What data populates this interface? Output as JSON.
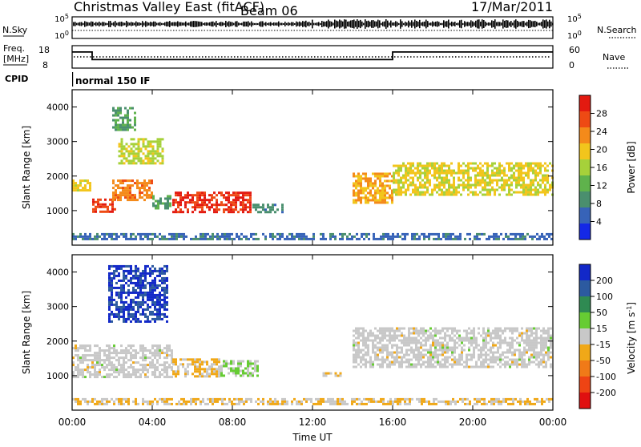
{
  "header": {
    "title": "Christmas Valley East (fitACF)",
    "beam": "Beam 06",
    "date": "17/Mar/2011"
  },
  "strips": {
    "nsky": {
      "left_label": "N.Sky",
      "right_label": "N.Search",
      "left_ticks": [
        "10^5",
        "10^0"
      ],
      "right_ticks": [
        "10^5",
        "10^0"
      ]
    },
    "freq": {
      "left_label_1": "Freq.",
      "left_label_2": "[MHz]",
      "right_label": "Nave",
      "left_ticks": [
        "18",
        "8"
      ],
      "right_ticks": [
        "60",
        "0"
      ],
      "freq_steps": [
        {
          "t0": 0.0,
          "t1": 1.0,
          "value": 15.2
        },
        {
          "t0": 1.0,
          "t1": 16.0,
          "value": 11.8
        },
        {
          "t0": 16.0,
          "t1": 24.0,
          "value": 15.2
        }
      ]
    },
    "cpid": {
      "label": "CPID",
      "value": "normal 150 IF"
    }
  },
  "colors": {
    "power": [
      "#1428e6",
      "#3763b8",
      "#4a8f6e",
      "#5fb24c",
      "#a6d13a",
      "#f2c51c",
      "#f48a1a",
      "#ee4a14",
      "#e31a10"
    ],
    "velocity": [
      "#1228c8",
      "#2c5aa0",
      "#2f8a52",
      "#66cc33",
      "#c8c8c8",
      "#f0a818",
      "#f07a18",
      "#ee4414",
      "#e01010"
    ]
  },
  "chart_data": [
    {
      "type": "heatmap",
      "name": "power",
      "xlabel": "Time UT",
      "ylabel": "Slant Range [km]",
      "xlim": [
        0,
        24
      ],
      "ylim": [
        0,
        4500
      ],
      "x_ticks": [
        "00:00",
        "04:00",
        "08:00",
        "12:00",
        "16:00",
        "20:00",
        "00:00"
      ],
      "y_ticks": [
        "1000",
        "2000",
        "3000",
        "4000"
      ],
      "colorbar": {
        "label": "Power [dB]",
        "ticks": [
          "4",
          "8",
          "12",
          "16",
          "20",
          "24",
          "28"
        ],
        "range": [
          0,
          30
        ]
      },
      "regions": [
        {
          "t0": 0.0,
          "t1": 1.0,
          "r0": 1550,
          "r1": 1900,
          "value": 18
        },
        {
          "t0": 1.0,
          "t1": 2.2,
          "r0": 950,
          "r1": 1350,
          "value": 26
        },
        {
          "t0": 2.0,
          "t1": 4.0,
          "r0": 1300,
          "r1": 1900,
          "value": 22
        },
        {
          "t0": 4.0,
          "t1": 5.0,
          "r0": 1050,
          "r1": 1450,
          "value": 10
        },
        {
          "t0": 5.0,
          "t1": 9.0,
          "r0": 900,
          "r1": 1550,
          "value": 27
        },
        {
          "t0": 9.0,
          "t1": 10.5,
          "r0": 950,
          "r1": 1200,
          "value": 8
        },
        {
          "t0": 2.3,
          "t1": 4.6,
          "r0": 2300,
          "r1": 3100,
          "value": 16
        },
        {
          "t0": 2.0,
          "t1": 3.2,
          "r0": 3300,
          "r1": 4000,
          "value": 10
        },
        {
          "t0": 14.0,
          "t1": 16.0,
          "r0": 1200,
          "r1": 2100,
          "value": 20
        },
        {
          "t0": 16.0,
          "t1": 24.0,
          "r0": 1400,
          "r1": 2400,
          "value": 17
        },
        {
          "t0": 0.0,
          "t1": 24.0,
          "r0": 150,
          "r1": 350,
          "value": 6
        }
      ]
    },
    {
      "type": "heatmap",
      "name": "velocity",
      "xlabel": "Time UT",
      "ylabel": "Slant Range [km]",
      "xlim": [
        0,
        24
      ],
      "ylim": [
        0,
        4500
      ],
      "x_ticks": [
        "00:00",
        "04:00",
        "08:00",
        "12:00",
        "16:00",
        "20:00",
        "00:00"
      ],
      "y_ticks": [
        "1000",
        "2000",
        "3000",
        "4000"
      ],
      "colorbar": {
        "label": "Velocity [m s^-1]",
        "ticks": [
          "200",
          "100",
          "50",
          "15",
          "-15",
          "-50",
          "-100",
          "-200"
        ],
        "range": [
          -250,
          250
        ]
      },
      "regions": [
        {
          "t0": 0.0,
          "t1": 5.0,
          "r0": 950,
          "r1": 1900,
          "value": 0
        },
        {
          "t0": 5.0,
          "t1": 7.4,
          "r0": 950,
          "r1": 1500,
          "value": -30
        },
        {
          "t0": 7.4,
          "t1": 9.3,
          "r0": 950,
          "r1": 1450,
          "value": 30
        },
        {
          "t0": 1.8,
          "t1": 4.8,
          "r0": 2500,
          "r1": 4200,
          "value": 200
        },
        {
          "t0": 12.5,
          "t1": 13.5,
          "r0": 950,
          "r1": 1100,
          "value": -30
        },
        {
          "t0": 14.0,
          "t1": 24.0,
          "r0": 1200,
          "r1": 2400,
          "value": 0
        },
        {
          "t0": 0.0,
          "t1": 24.0,
          "r0": 150,
          "r1": 350,
          "value": -30
        }
      ]
    }
  ]
}
